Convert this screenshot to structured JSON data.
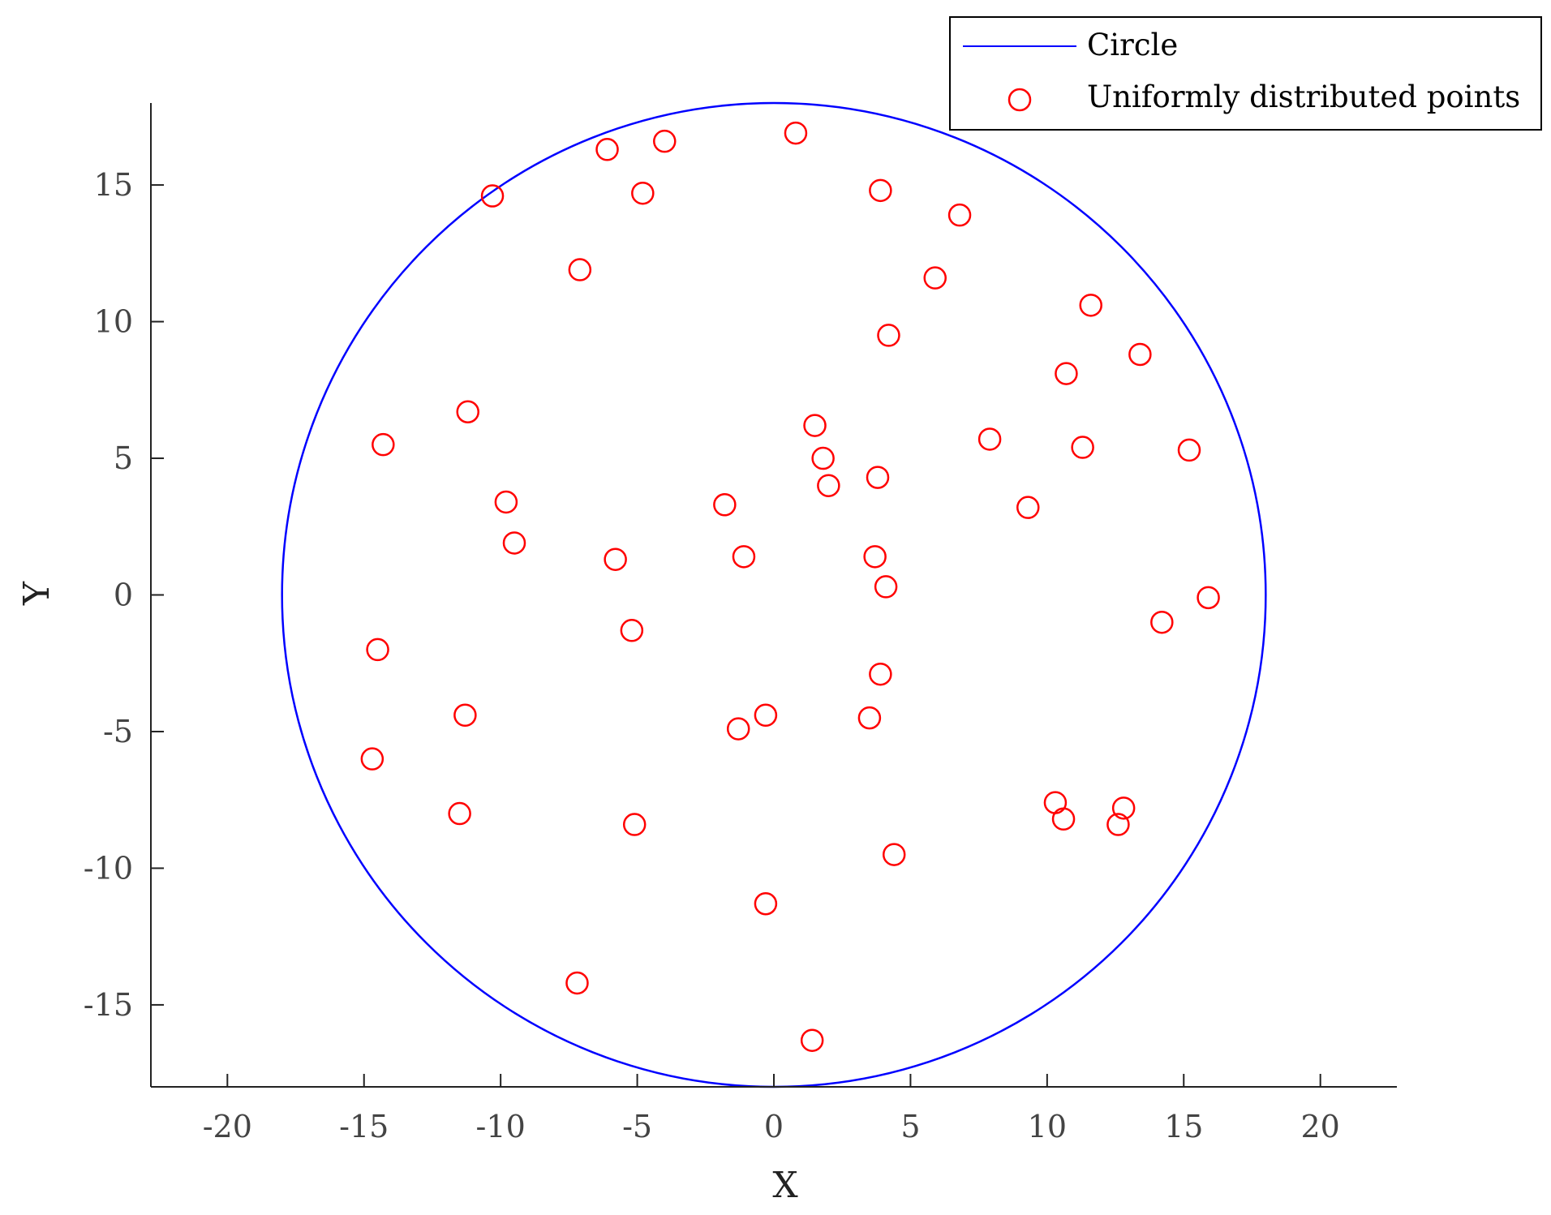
{
  "chart_data": {
    "type": "scatter",
    "title": "",
    "xlabel": "X",
    "ylabel": "Y",
    "xlim": [
      -22.8,
      22.8
    ],
    "ylim": [
      -18.0,
      18.0
    ],
    "xticks": [
      -20,
      -15,
      -10,
      -5,
      0,
      5,
      10,
      15,
      20
    ],
    "yticks": [
      -15,
      -10,
      -5,
      0,
      5,
      10,
      15
    ],
    "grid": false,
    "legend": {
      "position": "top-right"
    },
    "series": [
      {
        "name": "Circle",
        "kind": "line",
        "color": "#0000ff",
        "center": [
          0,
          0
        ],
        "radius": 18
      },
      {
        "name": "Uniformly distributed points",
        "kind": "scatter",
        "marker": "open-circle",
        "color": "#ff0000",
        "points": [
          [
            0.8,
            16.9
          ],
          [
            -4.0,
            16.6
          ],
          [
            -6.1,
            16.3
          ],
          [
            -10.3,
            14.6
          ],
          [
            -4.8,
            14.7
          ],
          [
            3.9,
            14.8
          ],
          [
            6.8,
            13.9
          ],
          [
            -7.1,
            11.9
          ],
          [
            5.9,
            11.6
          ],
          [
            11.6,
            10.6
          ],
          [
            4.2,
            9.5
          ],
          [
            13.4,
            8.8
          ],
          [
            10.7,
            8.1
          ],
          [
            -11.2,
            6.7
          ],
          [
            1.5,
            6.2
          ],
          [
            7.9,
            5.7
          ],
          [
            -14.3,
            5.5
          ],
          [
            11.3,
            5.4
          ],
          [
            15.2,
            5.3
          ],
          [
            1.8,
            5.0
          ],
          [
            3.8,
            4.3
          ],
          [
            2.0,
            4.0
          ],
          [
            -9.8,
            3.4
          ],
          [
            -1.8,
            3.3
          ],
          [
            9.3,
            3.2
          ],
          [
            -9.5,
            1.9
          ],
          [
            -1.1,
            1.4
          ],
          [
            -5.8,
            1.3
          ],
          [
            3.7,
            1.4
          ],
          [
            4.1,
            0.3
          ],
          [
            15.9,
            -0.1
          ],
          [
            14.2,
            -1.0
          ],
          [
            -5.2,
            -1.3
          ],
          [
            -14.5,
            -2.0
          ],
          [
            3.9,
            -2.9
          ],
          [
            -11.3,
            -4.4
          ],
          [
            -0.3,
            -4.4
          ],
          [
            3.5,
            -4.5
          ],
          [
            -1.3,
            -4.9
          ],
          [
            -14.7,
            -6.0
          ],
          [
            10.3,
            -7.6
          ],
          [
            12.8,
            -7.8
          ],
          [
            -11.5,
            -8.0
          ],
          [
            10.6,
            -8.2
          ],
          [
            12.6,
            -8.4
          ],
          [
            -5.1,
            -8.4
          ],
          [
            4.4,
            -9.5
          ],
          [
            -0.3,
            -11.3
          ],
          [
            -7.2,
            -14.2
          ],
          [
            1.4,
            -16.3
          ]
        ]
      }
    ]
  }
}
